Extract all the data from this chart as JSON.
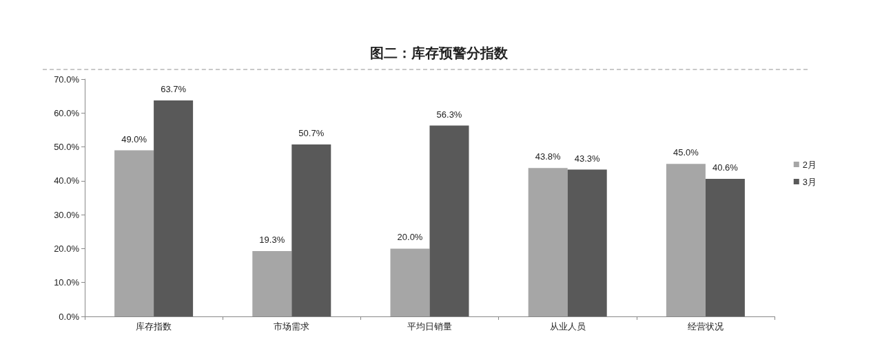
{
  "chart_data": {
    "type": "bar",
    "title": "图二：库存预警分指数",
    "categories": [
      "库存指数",
      "市场需求",
      "平均日销量",
      "从业人员",
      "经营状况"
    ],
    "series": [
      {
        "name": "2月",
        "color": "#a6a6a6",
        "values": [
          49.0,
          19.3,
          20.0,
          43.8,
          45.0
        ],
        "value_labels": [
          "49.0%",
          "19.3%",
          "20.0%",
          "43.8%",
          "45.0%"
        ]
      },
      {
        "name": "3月",
        "color": "#595959",
        "values": [
          63.7,
          50.7,
          56.3,
          43.3,
          40.6
        ],
        "value_labels": [
          "63.7%",
          "50.7%",
          "56.3%",
          "43.3%",
          "40.6%"
        ]
      }
    ],
    "ylim": [
      0,
      70
    ],
    "yticks": [
      {
        "value": 0,
        "label": "0.0%"
      },
      {
        "value": 10,
        "label": "10.0%"
      },
      {
        "value": 20,
        "label": "20.0%"
      },
      {
        "value": 30,
        "label": "30.0%"
      },
      {
        "value": 40,
        "label": "40.0%"
      },
      {
        "value": 50,
        "label": "50.0%"
      },
      {
        "value": 60,
        "label": "60.0%"
      },
      {
        "value": 70,
        "label": "70.0%"
      }
    ],
    "grid": false,
    "legend": "right"
  }
}
